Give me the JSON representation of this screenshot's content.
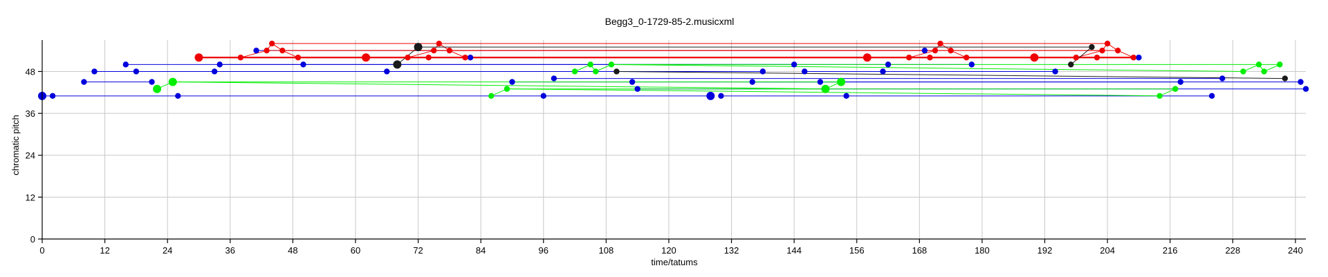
{
  "chart_data": {
    "type": "scatter",
    "title": "Begg3_0-1729-85-2.musicxml",
    "xlabel": "time/tatums",
    "ylabel": "chromatic pitch",
    "xlim": [
      0,
      242
    ],
    "ylim": [
      0,
      57
    ],
    "x_ticks": [
      0,
      12,
      24,
      36,
      48,
      60,
      72,
      84,
      96,
      108,
      120,
      132,
      144,
      156,
      168,
      180,
      192,
      204,
      216,
      228,
      240
    ],
    "y_ticks": [
      0,
      12,
      24,
      36,
      48
    ],
    "grid": true,
    "legend": "none",
    "colors": {
      "blue": "#0000dd",
      "red": "#ee0000",
      "green": "#00ee00",
      "black": "#1a1a1a",
      "grid": "#c8c8c8"
    },
    "series": [
      {
        "color": "blue",
        "points": [
          {
            "x": 0,
            "y": 41,
            "big": true
          },
          {
            "x": 2,
            "y": 41
          },
          {
            "x": 8,
            "y": 45
          },
          {
            "x": 10,
            "y": 48
          },
          {
            "x": 16,
            "y": 50
          },
          {
            "x": 18,
            "y": 48
          },
          {
            "x": 21,
            "y": 45
          },
          {
            "x": 26,
            "y": 41
          },
          {
            "x": 33,
            "y": 48
          },
          {
            "x": 34,
            "y": 50
          },
          {
            "x": 41,
            "y": 54
          },
          {
            "x": 50,
            "y": 50
          },
          {
            "x": 66,
            "y": 48
          },
          {
            "x": 82,
            "y": 52
          },
          {
            "x": 90,
            "y": 45
          },
          {
            "x": 96,
            "y": 41
          },
          {
            "x": 98,
            "y": 46
          },
          {
            "x": 113,
            "y": 45
          },
          {
            "x": 114,
            "y": 43
          },
          {
            "x": 128,
            "y": 41,
            "big": true
          },
          {
            "x": 130,
            "y": 41
          },
          {
            "x": 136,
            "y": 45
          },
          {
            "x": 138,
            "y": 48
          },
          {
            "x": 144,
            "y": 50
          },
          {
            "x": 146,
            "y": 48
          },
          {
            "x": 149,
            "y": 45
          },
          {
            "x": 154,
            "y": 41
          },
          {
            "x": 161,
            "y": 48
          },
          {
            "x": 162,
            "y": 50
          },
          {
            "x": 169,
            "y": 54
          },
          {
            "x": 178,
            "y": 50
          },
          {
            "x": 194,
            "y": 48
          },
          {
            "x": 210,
            "y": 52
          },
          {
            "x": 218,
            "y": 45
          },
          {
            "x": 224,
            "y": 41
          },
          {
            "x": 226,
            "y": 46
          },
          {
            "x": 241,
            "y": 45
          },
          {
            "x": 242,
            "y": 43
          }
        ],
        "spans": [
          {
            "x1": 0,
            "x2": 128,
            "y": 41
          },
          {
            "x1": 130,
            "x2": 224,
            "y": 41
          },
          {
            "x1": 8,
            "x2": 21,
            "y": 45
          },
          {
            "x1": 10,
            "x2": 66,
            "y": 48
          },
          {
            "x1": 16,
            "x2": 144,
            "y": 50
          },
          {
            "x1": 34,
            "x2": 162,
            "y": 50
          },
          {
            "x1": 33,
            "x2": 138,
            "y": 48
          },
          {
            "x1": 146,
            "x2": 194,
            "y": 48
          },
          {
            "x1": 90,
            "x2": 218,
            "y": 45
          },
          {
            "x1": 98,
            "x2": 226,
            "y": 46
          },
          {
            "x1": 114,
            "x2": 242,
            "y": 43
          },
          {
            "x1": 136,
            "x2": 241,
            "y": 45
          },
          {
            "x1": 41,
            "x2": 169,
            "y": 54
          },
          {
            "x1": 82,
            "x2": 210,
            "y": 52
          },
          {
            "x1": 162,
            "x2": 178,
            "y": 50
          }
        ]
      },
      {
        "color": "red",
        "points": [
          {
            "x": 30,
            "y": 52,
            "big": true
          },
          {
            "x": 38,
            "y": 52
          },
          {
            "x": 43,
            "y": 54
          },
          {
            "x": 44,
            "y": 56
          },
          {
            "x": 46,
            "y": 54
          },
          {
            "x": 49,
            "y": 52
          },
          {
            "x": 62,
            "y": 52,
            "big": true
          },
          {
            "x": 70,
            "y": 52
          },
          {
            "x": 74,
            "y": 52
          },
          {
            "x": 75,
            "y": 54
          },
          {
            "x": 76,
            "y": 56
          },
          {
            "x": 78,
            "y": 54
          },
          {
            "x": 81,
            "y": 52
          },
          {
            "x": 158,
            "y": 52,
            "big": true
          },
          {
            "x": 166,
            "y": 52
          },
          {
            "x": 171,
            "y": 54
          },
          {
            "x": 172,
            "y": 56
          },
          {
            "x": 174,
            "y": 54
          },
          {
            "x": 177,
            "y": 52
          },
          {
            "x": 190,
            "y": 52,
            "big": true
          },
          {
            "x": 198,
            "y": 52
          },
          {
            "x": 202,
            "y": 52
          },
          {
            "x": 203,
            "y": 54
          },
          {
            "x": 204,
            "y": 56
          },
          {
            "x": 206,
            "y": 54
          },
          {
            "x": 209,
            "y": 52
          },
          {
            "x": 170,
            "y": 52
          }
        ],
        "spans": [
          {
            "x1": 30,
            "x2": 209,
            "y": 52,
            "bold": true
          },
          {
            "x1": 43,
            "x2": 203,
            "y": 54
          },
          {
            "x1": 44,
            "x2": 204,
            "y": 56
          },
          {
            "x1": 46,
            "x2": 206,
            "y": 54
          },
          {
            "x1": 75,
            "x2": 171,
            "y": 54
          }
        ],
        "paths": [
          [
            {
              "x": 38,
              "y": 52
            },
            {
              "x": 43,
              "y": 54
            },
            {
              "x": 44,
              "y": 56
            },
            {
              "x": 46,
              "y": 54
            },
            {
              "x": 49,
              "y": 52
            }
          ],
          [
            {
              "x": 70,
              "y": 52
            },
            {
              "x": 75,
              "y": 54
            },
            {
              "x": 76,
              "y": 56
            },
            {
              "x": 78,
              "y": 54
            },
            {
              "x": 81,
              "y": 52
            }
          ],
          [
            {
              "x": 166,
              "y": 52
            },
            {
              "x": 171,
              "y": 54
            },
            {
              "x": 172,
              "y": 56
            },
            {
              "x": 174,
              "y": 54
            },
            {
              "x": 177,
              "y": 52
            }
          ],
          [
            {
              "x": 198,
              "y": 52
            },
            {
              "x": 203,
              "y": 54
            },
            {
              "x": 204,
              "y": 56
            },
            {
              "x": 206,
              "y": 54
            },
            {
              "x": 209,
              "y": 52
            }
          ]
        ]
      },
      {
        "color": "green",
        "points": [
          {
            "x": 22,
            "y": 43,
            "big": true
          },
          {
            "x": 25,
            "y": 45,
            "big": true
          },
          {
            "x": 86,
            "y": 41
          },
          {
            "x": 89,
            "y": 43
          },
          {
            "x": 102,
            "y": 48
          },
          {
            "x": 105,
            "y": 50
          },
          {
            "x": 106,
            "y": 48
          },
          {
            "x": 109,
            "y": 50
          },
          {
            "x": 150,
            "y": 43,
            "big": true
          },
          {
            "x": 153,
            "y": 45,
            "big": true
          },
          {
            "x": 214,
            "y": 41
          },
          {
            "x": 217,
            "y": 43
          },
          {
            "x": 230,
            "y": 48
          },
          {
            "x": 233,
            "y": 50
          },
          {
            "x": 234,
            "y": 48
          },
          {
            "x": 237,
            "y": 50
          }
        ],
        "paths": [
          [
            {
              "x": 22,
              "y": 43
            },
            {
              "x": 25,
              "y": 45
            },
            {
              "x": 153,
              "y": 45
            }
          ],
          [
            {
              "x": 25,
              "y": 45
            },
            {
              "x": 150,
              "y": 43
            },
            {
              "x": 153,
              "y": 45
            }
          ],
          [
            {
              "x": 86,
              "y": 41
            },
            {
              "x": 89,
              "y": 43
            },
            {
              "x": 217,
              "y": 43
            }
          ],
          [
            {
              "x": 89,
              "y": 43
            },
            {
              "x": 214,
              "y": 41
            },
            {
              "x": 217,
              "y": 43
            }
          ],
          [
            {
              "x": 102,
              "y": 48
            },
            {
              "x": 105,
              "y": 50
            },
            {
              "x": 106,
              "y": 48
            },
            {
              "x": 109,
              "y": 50
            },
            {
              "x": 230,
              "y": 48
            }
          ],
          [
            {
              "x": 109,
              "y": 50
            },
            {
              "x": 237,
              "y": 50
            }
          ],
          [
            {
              "x": 230,
              "y": 48
            },
            {
              "x": 233,
              "y": 50
            },
            {
              "x": 234,
              "y": 48
            },
            {
              "x": 237,
              "y": 50
            }
          ]
        ]
      },
      {
        "color": "black",
        "points": [
          {
            "x": 68,
            "y": 50,
            "big": true
          },
          {
            "x": 72,
            "y": 55,
            "big": true
          },
          {
            "x": 110,
            "y": 48
          },
          {
            "x": 197,
            "y": 50
          },
          {
            "x": 201,
            "y": 55
          },
          {
            "x": 238,
            "y": 46
          }
        ],
        "paths": [
          [
            {
              "x": 68,
              "y": 50
            },
            {
              "x": 72,
              "y": 55
            },
            {
              "x": 201,
              "y": 55
            }
          ],
          [
            {
              "x": 197,
              "y": 50
            },
            {
              "x": 201,
              "y": 55
            }
          ],
          [
            {
              "x": 110,
              "y": 48
            },
            {
              "x": 238,
              "y": 46
            }
          ]
        ]
      }
    ]
  }
}
